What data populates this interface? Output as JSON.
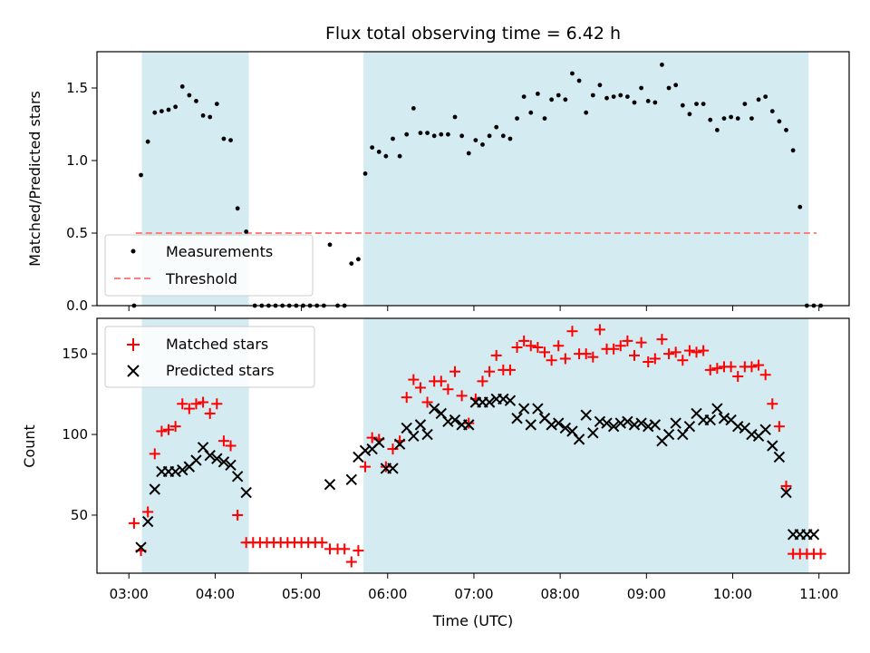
{
  "chart_data": {
    "title": "Flux total observing time = 6.42 h",
    "xlabel": "Time (UTC)",
    "x_ticks": [
      "03:00",
      "04:00",
      "05:00",
      "06:00",
      "07:00",
      "08:00",
      "09:00",
      "10:00",
      "11:00"
    ],
    "x_range_hours": [
      2.63,
      11.35
    ],
    "shaded_intervals_hours": [
      [
        3.15,
        4.39
      ],
      [
        5.72,
        10.88
      ]
    ],
    "colors": {
      "shade": "#add8e6",
      "matched": "#ff0000",
      "predicted": "#000000",
      "threshold": "#ff7f7f"
    },
    "panels": [
      {
        "type": "scatter",
        "ylabel": "Matched/Predicted stars",
        "ylim": [
          0,
          1.75
        ],
        "y_ticks": [
          "0.0",
          "0.5",
          "1.0",
          "1.5"
        ],
        "legend_position": "lower-left",
        "threshold": {
          "name": "Threshold",
          "y": 0.5,
          "x_range_hours": [
            3.08,
            10.97
          ]
        },
        "series": [
          {
            "name": "Measurements",
            "marker": "dot",
            "x_hours": [
              3.06,
              3.14,
              3.22,
              3.3,
              3.38,
              3.46,
              3.54,
              3.62,
              3.7,
              3.78,
              3.86,
              3.94,
              4.02,
              4.1,
              4.18,
              4.26,
              4.36,
              4.46,
              4.54,
              4.62,
              4.7,
              4.78,
              4.86,
              4.94,
              5.02,
              5.1,
              5.18,
              5.26,
              5.33,
              5.42,
              5.5,
              5.58,
              5.66,
              5.74,
              5.82,
              5.9,
              5.98,
              6.06,
              6.14,
              6.22,
              6.3,
              6.38,
              6.46,
              6.54,
              6.62,
              6.7,
              6.78,
              6.86,
              6.94,
              7.02,
              7.1,
              7.18,
              7.26,
              7.34,
              7.42,
              7.5,
              7.58,
              7.66,
              7.74,
              7.82,
              7.9,
              7.98,
              8.06,
              8.14,
              8.22,
              8.3,
              8.38,
              8.46,
              8.54,
              8.62,
              8.7,
              8.78,
              8.86,
              8.94,
              9.02,
              9.1,
              9.18,
              9.26,
              9.34,
              9.42,
              9.5,
              9.58,
              9.66,
              9.74,
              9.82,
              9.9,
              9.98,
              10.06,
              10.14,
              10.22,
              10.3,
              10.38,
              10.46,
              10.54,
              10.62,
              10.7,
              10.78,
              10.86,
              10.94,
              11.02
            ],
            "y": [
              0.0,
              0.9,
              1.13,
              1.33,
              1.34,
              1.35,
              1.37,
              1.51,
              1.45,
              1.41,
              1.31,
              1.3,
              1.39,
              1.15,
              1.14,
              0.67,
              0.51,
              0.0,
              0.0,
              0.0,
              0.0,
              0.0,
              0.0,
              0.0,
              0.0,
              0.0,
              0.0,
              0.0,
              0.42,
              0.0,
              0.0,
              0.29,
              0.32,
              0.91,
              1.09,
              1.06,
              1.03,
              1.15,
              1.03,
              1.18,
              1.36,
              1.19,
              1.19,
              1.17,
              1.18,
              1.18,
              1.3,
              1.17,
              1.05,
              1.14,
              1.11,
              1.17,
              1.23,
              1.17,
              1.15,
              1.29,
              1.44,
              1.33,
              1.46,
              1.29,
              1.42,
              1.45,
              1.42,
              1.6,
              1.55,
              1.33,
              1.45,
              1.52,
              1.43,
              1.44,
              1.45,
              1.44,
              1.4,
              1.5,
              1.41,
              1.4,
              1.66,
              1.5,
              1.52,
              1.38,
              1.32,
              1.39,
              1.39,
              1.28,
              1.21,
              1.29,
              1.3,
              1.29,
              1.39,
              1.29,
              1.42,
              1.44,
              1.34,
              1.27,
              1.21,
              1.07,
              0.68,
              0.0,
              0.0,
              0.0
            ]
          }
        ]
      },
      {
        "type": "scatter",
        "ylabel": "Count",
        "ylim": [
          14,
          172
        ],
        "y_ticks": [
          "50",
          "100",
          "150"
        ],
        "legend_position": "upper-left",
        "series": [
          {
            "name": "Matched stars",
            "marker": "plus",
            "x_hours": [
              3.06,
              3.14,
              3.22,
              3.3,
              3.38,
              3.46,
              3.54,
              3.62,
              3.7,
              3.78,
              3.86,
              3.94,
              4.02,
              4.1,
              4.18,
              4.26,
              4.36,
              4.44,
              4.52,
              4.6,
              4.68,
              4.76,
              4.84,
              4.92,
              5.0,
              5.08,
              5.16,
              5.24,
              5.33,
              5.42,
              5.5,
              5.58,
              5.66,
              5.74,
              5.82,
              5.9,
              5.98,
              6.06,
              6.14,
              6.22,
              6.3,
              6.38,
              6.46,
              6.54,
              6.62,
              6.7,
              6.78,
              6.86,
              6.94,
              7.02,
              7.1,
              7.18,
              7.26,
              7.34,
              7.42,
              7.5,
              7.58,
              7.66,
              7.74,
              7.82,
              7.9,
              7.98,
              8.06,
              8.14,
              8.22,
              8.3,
              8.38,
              8.46,
              8.54,
              8.62,
              8.7,
              8.78,
              8.86,
              8.94,
              9.02,
              9.1,
              9.18,
              9.26,
              9.34,
              9.42,
              9.5,
              9.58,
              9.66,
              9.74,
              9.82,
              9.9,
              9.98,
              10.06,
              10.14,
              10.22,
              10.3,
              10.38,
              10.46,
              10.54,
              10.62,
              10.7,
              10.78,
              10.86,
              10.94,
              11.02
            ],
            "y": [
              45,
              28,
              52,
              88,
              102,
              103,
              105,
              119,
              116,
              119,
              120,
              113,
              119,
              96,
              93,
              50,
              33,
              33,
              33,
              33,
              33,
              33,
              33,
              33,
              33,
              33,
              33,
              33,
              29,
              29,
              29,
              21,
              28,
              80,
              98,
              97,
              80,
              91,
              96,
              123,
              134,
              129,
              120,
              133,
              133,
              128,
              139,
              124,
              107,
              122,
              133,
              139,
              149,
              140,
              140,
              154,
              158,
              155,
              154,
              151,
              146,
              155,
              147,
              164,
              150,
              150,
              148,
              165,
              153,
              153,
              155,
              158,
              149,
              157,
              145,
              147,
              159,
              150,
              151,
              146,
              152,
              151,
              152,
              140,
              141,
              142,
              142,
              136,
              142,
              142,
              143,
              137,
              119,
              105,
              68,
              26,
              26,
              26,
              26,
              26
            ]
          },
          {
            "name": "Predicted stars",
            "marker": "x",
            "x_hours": [
              3.14,
              3.22,
              3.3,
              3.38,
              3.46,
              3.54,
              3.62,
              3.7,
              3.78,
              3.86,
              3.94,
              4.02,
              4.1,
              4.18,
              4.26,
              4.36,
              5.33,
              5.58,
              5.66,
              5.74,
              5.82,
              5.9,
              5.98,
              6.06,
              6.14,
              6.22,
              6.3,
              6.38,
              6.46,
              6.54,
              6.62,
              6.7,
              6.78,
              6.86,
              6.94,
              7.02,
              7.1,
              7.18,
              7.26,
              7.34,
              7.42,
              7.5,
              7.58,
              7.66,
              7.74,
              7.82,
              7.9,
              7.98,
              8.06,
              8.14,
              8.22,
              8.3,
              8.38,
              8.46,
              8.54,
              8.62,
              8.7,
              8.78,
              8.86,
              8.94,
              9.02,
              9.1,
              9.18,
              9.26,
              9.34,
              9.42,
              9.5,
              9.58,
              9.66,
              9.74,
              9.82,
              9.9,
              9.98,
              10.06,
              10.14,
              10.22,
              10.3,
              10.38,
              10.46,
              10.54,
              10.62,
              10.7,
              10.78,
              10.86,
              10.94
            ],
            "y": [
              30,
              46,
              66,
              77,
              77,
              77,
              78,
              80,
              84,
              92,
              87,
              85,
              83,
              81,
              74,
              64,
              69,
              72,
              86,
              90,
              91,
              95,
              79,
              79,
              94,
              104,
              99,
              106,
              100,
              116,
              113,
              108,
              109,
              106,
              106,
              120,
              120,
              120,
              122,
              122,
              121,
              110,
              116,
              106,
              116,
              110,
              106,
              107,
              104,
              102,
              97,
              112,
              101,
              108,
              107,
              105,
              107,
              108,
              106,
              107,
              105,
              106,
              96,
              100,
              107,
              100,
              105,
              113,
              109,
              109,
              116,
              110,
              109,
              105,
              104,
              100,
              99,
              103,
              93,
              86,
              64,
              38,
              38,
              38,
              38
            ]
          }
        ]
      }
    ]
  }
}
